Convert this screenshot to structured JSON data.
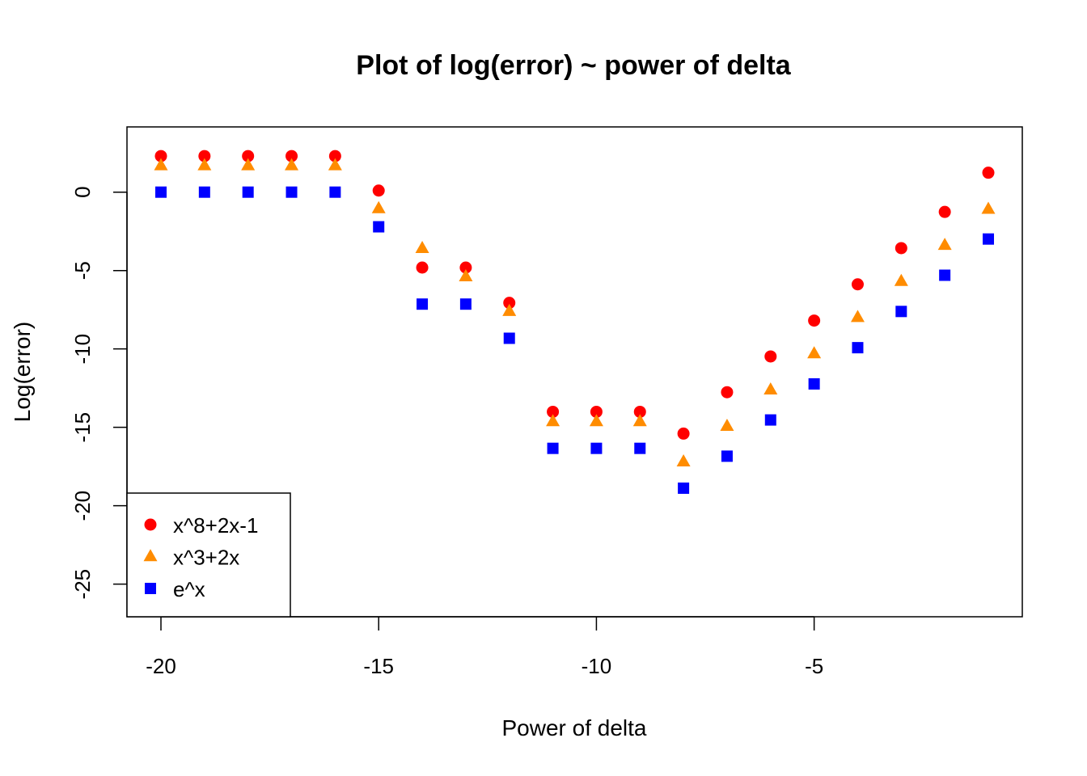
{
  "chart_data": {
    "type": "scatter",
    "title": "Plot of log(error) ~ power of delta",
    "xlabel": "Power of delta",
    "ylabel": "Log(error)",
    "xlim": [
      -20.78,
      -0.22
    ],
    "ylim": [
      -27.08,
      4.16
    ],
    "xticks": [
      -20,
      -15,
      -10,
      -5
    ],
    "yticks": [
      0,
      -5,
      -10,
      -15,
      -20,
      -25
    ],
    "grid": false,
    "legend_position": "bottom-left",
    "x": [
      -20,
      -19,
      -18,
      -17,
      -16,
      -15,
      -14,
      -13,
      -12,
      -11,
      -10,
      -9,
      -8,
      -7,
      -6,
      -5,
      -4,
      -3,
      -2,
      -1
    ],
    "series": [
      {
        "name": "x^8+2x-1",
        "color": "#ff0000",
        "marker": "circle",
        "values": [
          2.3,
          2.3,
          2.3,
          2.3,
          2.3,
          0.1,
          -4.81,
          -4.81,
          -7.06,
          -14.01,
          -14.01,
          -14.01,
          -15.4,
          -12.76,
          -10.48,
          -8.19,
          -5.88,
          -3.57,
          -1.26,
          1.24
        ]
      },
      {
        "name": "x^3+2x",
        "color": "#ff8c00",
        "marker": "triangle",
        "values": [
          1.69,
          1.69,
          1.69,
          1.69,
          1.69,
          -1.05,
          -3.59,
          -5.39,
          -7.6,
          -14.63,
          -14.63,
          -14.63,
          -17.2,
          -14.93,
          -12.61,
          -10.3,
          -7.99,
          -5.69,
          -3.39,
          -1.09
        ]
      },
      {
        "name": "e^x",
        "color": "#0000ff",
        "marker": "square",
        "values": [
          0.0,
          0.0,
          0.0,
          0.0,
          0.0,
          -2.21,
          -7.14,
          -7.14,
          -9.32,
          -16.34,
          -16.34,
          -16.34,
          -18.88,
          -16.84,
          -14.53,
          -12.23,
          -9.92,
          -7.61,
          -5.3,
          -2.99
        ]
      }
    ]
  }
}
